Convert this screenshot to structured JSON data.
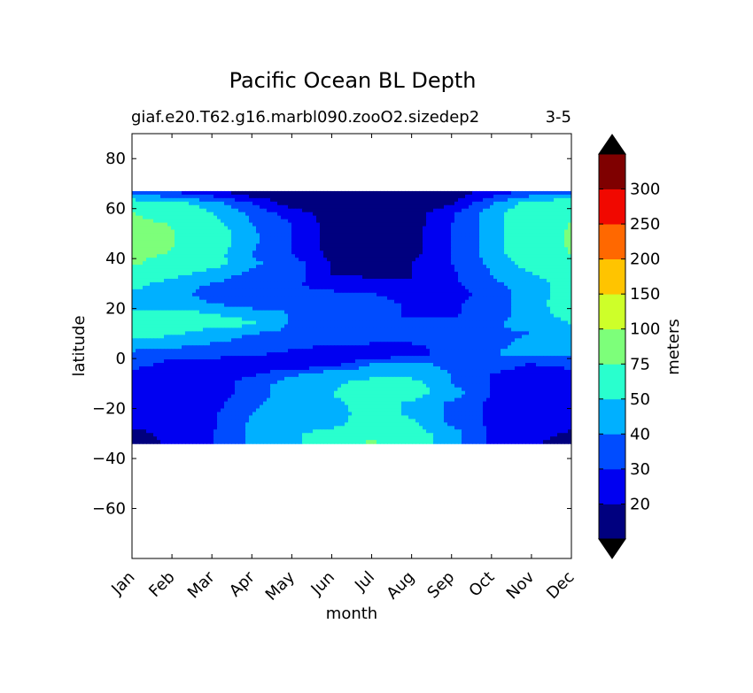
{
  "chart_data": {
    "type": "heatmap",
    "style": "filled-contour",
    "title": "Pacific Ocean BL Depth",
    "subtitle_left": "giaf.e20.T62.g16.marbl090.zooO2.sizedep2",
    "subtitle_right": "3-5",
    "xlabel": "month",
    "ylabel": "latitude",
    "x_categories": [
      "Jan",
      "Feb",
      "Mar",
      "Apr",
      "May",
      "Jun",
      "Jul",
      "Aug",
      "Sep",
      "Oct",
      "Nov",
      "Dec"
    ],
    "xlim": [
      0,
      11
    ],
    "ylim": [
      -80,
      90
    ],
    "y_ticks": [
      80,
      60,
      40,
      20,
      0,
      -20,
      -40,
      -60
    ],
    "y_tick_labels": [
      "80",
      "60",
      "40",
      "20",
      "0",
      "−20",
      "−40",
      "−60"
    ],
    "data_lat_range": [
      -34,
      67
    ],
    "colorbar": {
      "label": "meters",
      "extend": "both",
      "levels": [
        0,
        20,
        30,
        40,
        50,
        75,
        100,
        150,
        200,
        250,
        300
      ],
      "tick_labels": [
        "20",
        "30",
        "40",
        "50",
        "75",
        "100",
        "150",
        "200",
        "250",
        "300"
      ],
      "colors": [
        "#00007f",
        "#0000f1",
        "#004cff",
        "#00b0ff",
        "#29ffce",
        "#7dff7a",
        "#ceff29",
        "#ffc400",
        "#ff6800",
        "#f10800",
        "#7f0000"
      ],
      "under_color": "#000000",
      "over_color": "#000000"
    },
    "lat_rows": [
      66,
      62,
      58,
      54,
      50,
      46,
      42,
      38,
      34,
      30,
      26,
      22,
      18,
      14,
      10,
      6,
      2,
      -2,
      -6,
      -10,
      -14,
      -18,
      -22,
      -26,
      -30,
      -33
    ],
    "values": [
      [
        38,
        32,
        25,
        15,
        12,
        12,
        12,
        12,
        15,
        25,
        35,
        38
      ],
      [
        58,
        55,
        45,
        30,
        15,
        12,
        12,
        12,
        18,
        40,
        55,
        60
      ],
      [
        76,
        65,
        50,
        38,
        25,
        15,
        15,
        15,
        28,
        45,
        60,
        66
      ],
      [
        80,
        74,
        55,
        40,
        30,
        15,
        15,
        15,
        30,
        45,
        62,
        76
      ],
      [
        81,
        76,
        58,
        42,
        30,
        16,
        15,
        16,
        30,
        45,
        62,
        78
      ],
      [
        81,
        76,
        58,
        42,
        30,
        16,
        15,
        16,
        30,
        45,
        62,
        78
      ],
      [
        80,
        74,
        55,
        40,
        30,
        17,
        15,
        17,
        30,
        45,
        60,
        76
      ],
      [
        78,
        65,
        55,
        42,
        35,
        20,
        18,
        20,
        30,
        42,
        55,
        65
      ],
      [
        66,
        55,
        45,
        38,
        35,
        20,
        18,
        20,
        28,
        40,
        50,
        60
      ],
      [
        55,
        45,
        40,
        35,
        32,
        25,
        22,
        20,
        28,
        38,
        45,
        55
      ],
      [
        48,
        45,
        35,
        33,
        32,
        32,
        30,
        25,
        25,
        35,
        45,
        55
      ],
      [
        42,
        45,
        40,
        35,
        35,
        38,
        35,
        28,
        28,
        35,
        45,
        58
      ],
      [
        55,
        55,
        50,
        45,
        40,
        38,
        35,
        28,
        28,
        35,
        45,
        55
      ],
      [
        62,
        58,
        55,
        52,
        38,
        32,
        32,
        32,
        32,
        38,
        45,
        50
      ],
      [
        60,
        52,
        45,
        40,
        38,
        35,
        32,
        32,
        32,
        38,
        40,
        44
      ],
      [
        45,
        42,
        40,
        37,
        36,
        32,
        30,
        30,
        32,
        38,
        42,
        45
      ],
      [
        38,
        38,
        35,
        33,
        27,
        20,
        20,
        25,
        35,
        40,
        42,
        42
      ],
      [
        36,
        25,
        24,
        22,
        18,
        25,
        40,
        42,
        38,
        32,
        30,
        32
      ],
      [
        26,
        24,
        24,
        28,
        38,
        45,
        45,
        45,
        40,
        30,
        28,
        28
      ],
      [
        24,
        24,
        24,
        35,
        45,
        48,
        55,
        55,
        40,
        30,
        28,
        28
      ],
      [
        24,
        24,
        24,
        35,
        45,
        50,
        55,
        55,
        45,
        30,
        28,
        28
      ],
      [
        22,
        22,
        26,
        38,
        45,
        48,
        55,
        48,
        38,
        28,
        25,
        25
      ],
      [
        22,
        22,
        28,
        40,
        45,
        45,
        55,
        48,
        38,
        28,
        25,
        25
      ],
      [
        22,
        22,
        28,
        42,
        45,
        45,
        58,
        52,
        38,
        28,
        25,
        25
      ],
      [
        18,
        22,
        30,
        42,
        48,
        55,
        60,
        55,
        45,
        28,
        25,
        18
      ],
      [
        15,
        22,
        30,
        42,
        48,
        55,
        78,
        55,
        45,
        28,
        22,
        15
      ]
    ]
  }
}
